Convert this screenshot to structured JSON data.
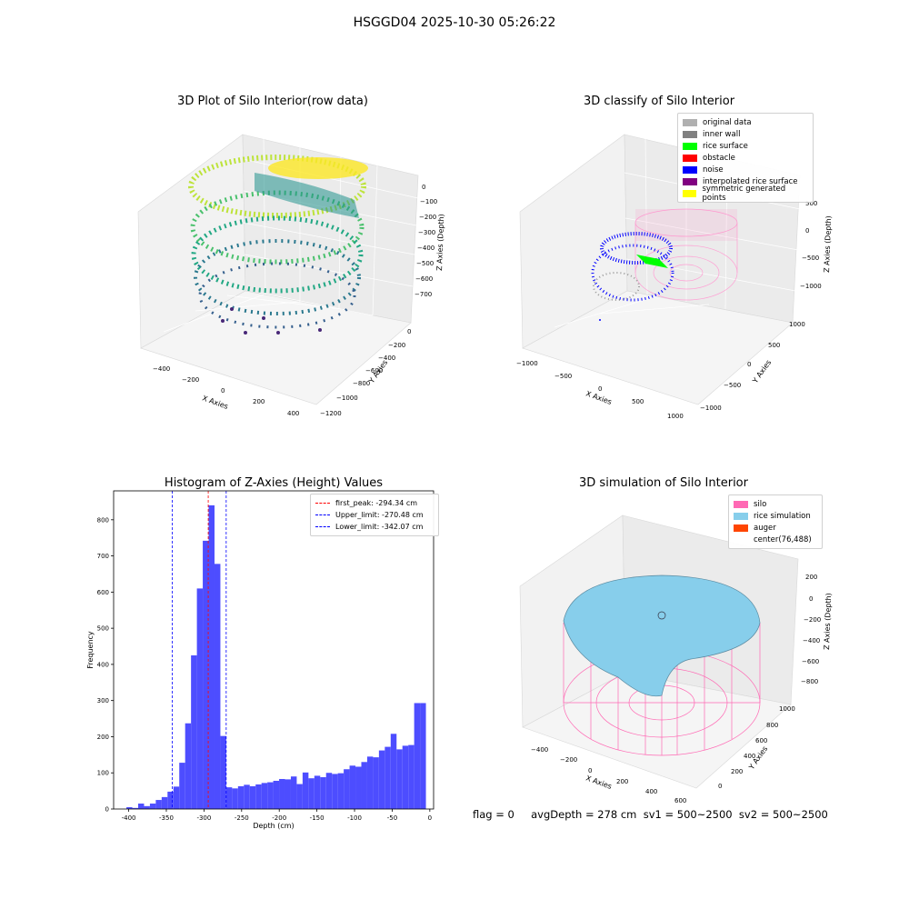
{
  "suptitle": "HSGGD04 2025-10-30 05:26:22",
  "panels": {
    "raw": {
      "title": "3D Plot of Silo Interior(row data)",
      "xlabel": "X Axies",
      "ylabel": "Y Axies",
      "zlabel": "Z Axies (Depth)",
      "xticks": [
        "−400",
        "−200",
        "0",
        "200",
        "400"
      ],
      "yticks": [
        "0",
        "−200",
        "−400",
        "−600",
        "−800",
        "−1000",
        "−1200"
      ],
      "zticks": [
        "0",
        "−100",
        "−200",
        "−300",
        "−400",
        "−500",
        "−600",
        "−700"
      ]
    },
    "classify": {
      "title": "3D classify of Silo Interior",
      "xlabel": "X Axies",
      "ylabel": "Y Axies",
      "zlabel": "Z Axies (Depth)",
      "xticks": [
        "−1000",
        "−500",
        "0",
        "500",
        "1000"
      ],
      "yticks": [
        "−1000",
        "−500",
        "0",
        "500",
        "1000"
      ],
      "zticks": [
        "500",
        "0",
        "−500",
        "−1000"
      ],
      "legend": [
        {
          "label": "original data",
          "color": "#b0b0b0"
        },
        {
          "label": "inner wall",
          "color": "#808080"
        },
        {
          "label": "rice surface",
          "color": "#00ff00"
        },
        {
          "label": "obstacle",
          "color": "#ff0000"
        },
        {
          "label": "noise",
          "color": "#0000ff"
        },
        {
          "label": "interpolated rice surface",
          "color": "#800080"
        },
        {
          "label": "symmetric generated points",
          "color": "#ffff00"
        }
      ]
    },
    "simulation": {
      "title": "3D simulation of Silo Interior",
      "xlabel": "X Axies",
      "ylabel": "Y Axies",
      "zlabel": "Z Axies (Depth)",
      "xticks": [
        "−400",
        "−200",
        "0",
        "200",
        "400",
        "600"
      ],
      "yticks": [
        "0",
        "200",
        "400",
        "600",
        "800",
        "1000"
      ],
      "zticks": [
        "200",
        "0",
        "−200",
        "−400",
        "−600",
        "−800"
      ],
      "legend": [
        {
          "label": "silo",
          "color": "#ff69b4"
        },
        {
          "label": "rice simulation",
          "color": "#87ceeb"
        },
        {
          "label": "auger",
          "color": "#ff4500"
        },
        {
          "label": "center(76,488)",
          "color": ""
        }
      ]
    }
  },
  "footer": "flag = 0     avgDepth = 278 cm  sv1 = 500~2500  sv2 = 500~2500",
  "chart_data": [
    {
      "type": "bar",
      "title": "Histogram of Z-Axies (Height) Values",
      "xlabel": "Depth (cm)",
      "ylabel": "Frequency",
      "xlim": [
        -420,
        5
      ],
      "ylim": [
        0,
        880
      ],
      "xticks": [
        -400,
        -350,
        -300,
        -250,
        -200,
        -150,
        -100,
        -50,
        0
      ],
      "yticks": [
        0,
        100,
        200,
        300,
        400,
        500,
        600,
        700,
        800
      ],
      "bin_width": 7.8,
      "bin_starts": [
        -403,
        -395.2,
        -387.4,
        -379.6,
        -371.8,
        -364,
        -356.2,
        -348.4,
        -340.6,
        -332.8,
        -325,
        -317.2,
        -309.4,
        -301.6,
        -293.8,
        -286,
        -278.2,
        -270.4,
        -262.6,
        -254.8,
        -247,
        -239.2,
        -231.4,
        -223.6,
        -215.8,
        -208,
        -200.2,
        -192.4,
        -184.6,
        -176.8,
        -169,
        -161.2,
        -153.4,
        -145.6,
        -137.8,
        -130,
        -122.2,
        -114.4,
        -106.6,
        -98.8,
        -91,
        -83.2,
        -75.4,
        -67.6,
        -59.8,
        -52,
        -44.2,
        -36.4,
        -28.6,
        -20.8,
        -13
      ],
      "values": [
        5,
        3,
        15,
        8,
        15,
        25,
        33,
        48,
        62,
        128,
        237,
        425,
        610,
        742,
        840,
        678,
        202,
        60,
        57,
        63,
        67,
        63,
        68,
        72,
        74,
        78,
        83,
        82,
        90,
        69,
        101,
        85,
        92,
        88,
        100,
        97,
        99,
        110,
        120,
        117,
        130,
        145,
        143,
        162,
        172,
        208,
        165,
        175,
        177,
        293,
        293
      ],
      "vlines": [
        {
          "label": "first_peak: -294.34 cm",
          "x": -294.34,
          "color": "#ff0000"
        },
        {
          "label": "Upper_limit: -270.48 cm",
          "x": -270.48,
          "color": "#0000ff"
        },
        {
          "label": "Lower_limit: -342.07 cm",
          "x": -342.07,
          "color": "#0000ff"
        }
      ],
      "bar_color": "#4d4dff",
      "legend_placement": "top-right"
    }
  ]
}
